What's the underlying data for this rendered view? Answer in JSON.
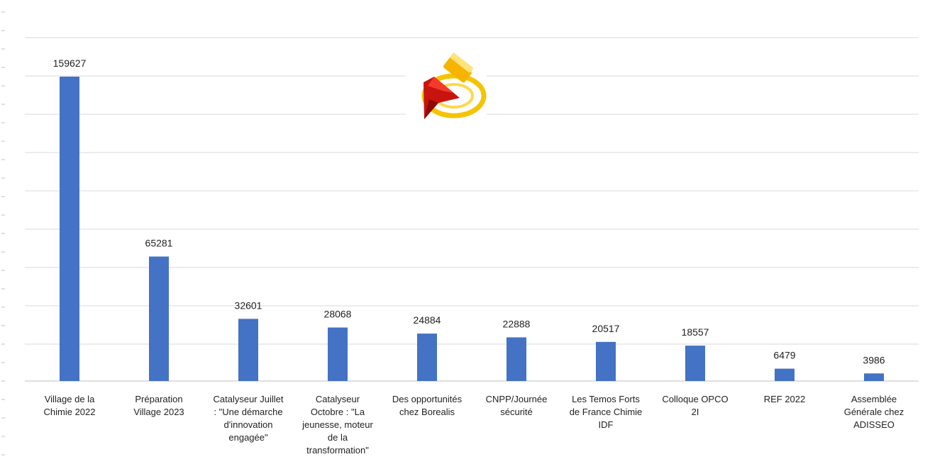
{
  "chart_data": {
    "type": "bar",
    "categories": [
      [
        "Village de la",
        "Chimie 2022"
      ],
      [
        "Préparation",
        "Village 2023"
      ],
      [
        "Catalyseur Juillet",
        ": \"Une démarche",
        "d'innovation",
        "engagée\""
      ],
      [
        "Catalyseur",
        "Octobre : \"La",
        "jeunesse, moteur",
        "de la",
        "transformation\""
      ],
      [
        "Des opportunités",
        "chez Borealis"
      ],
      [
        "CNPP/Journée",
        "sécurité"
      ],
      [
        "Les Temos Forts",
        "de France Chimie",
        "IDF"
      ],
      [
        "Colloque OPCO",
        "2I"
      ],
      [
        "REF  2022"
      ],
      [
        "Assemblée",
        "Générale chez",
        "ADISSEO"
      ]
    ],
    "values": [
      159627,
      65281,
      32601,
      28068,
      24884,
      22888,
      20517,
      18557,
      6479,
      3986
    ],
    "data_labels": [
      "159627",
      "65281",
      "32601",
      "28068",
      "24884",
      "22888",
      "20517",
      "18557",
      "6479",
      "3986"
    ],
    "ylim": [
      0,
      160000
    ],
    "grid": true,
    "legend": "none",
    "colors": {
      "bar": "#4472C4",
      "grid": "#D9D9D9",
      "axis": "#BFBFBF"
    },
    "title": "",
    "xlabel": "",
    "ylabel": ""
  },
  "decorations": {
    "icon": "red-arrow-download-icon"
  }
}
